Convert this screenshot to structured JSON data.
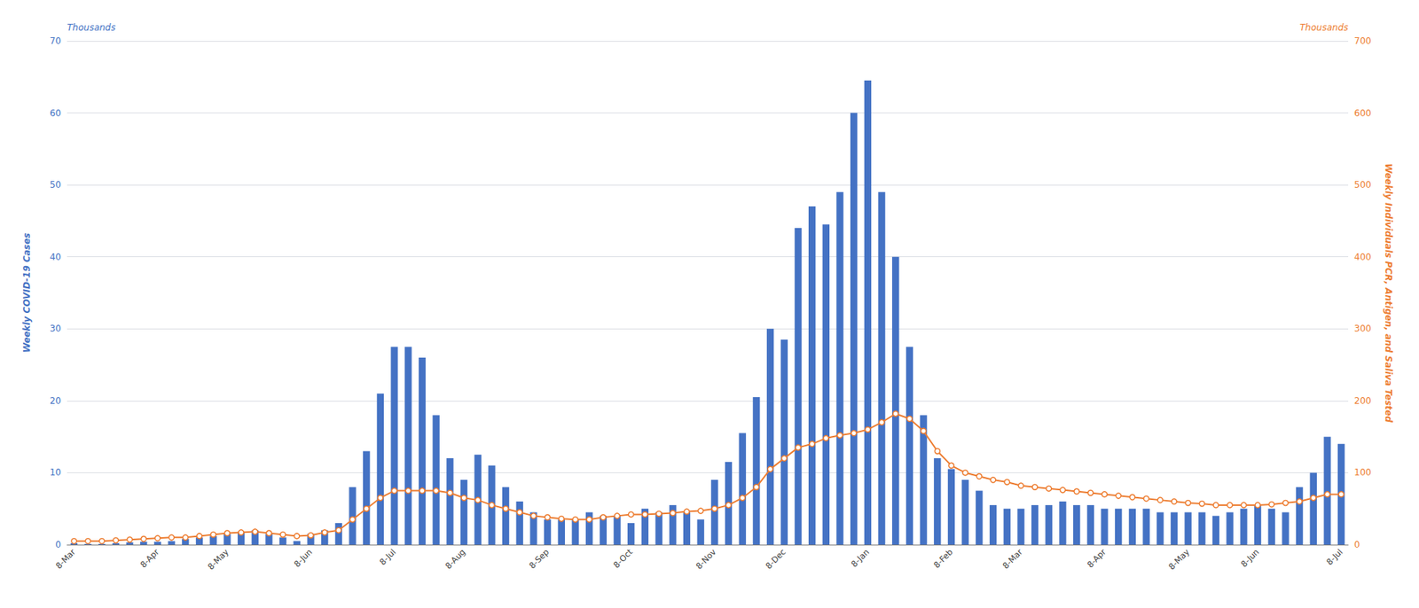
{
  "chart_data": {
    "type": "bar",
    "ylabel": "Weekly COVID-19 Cases",
    "y2label": "Weekly Individuals PCR, Antigen, and Saliva Tested",
    "annotations": [
      {
        "text": "Thousands",
        "axis": "y"
      },
      {
        "text": "Thousands",
        "axis": "y2"
      }
    ],
    "ylim": [
      0,
      70
    ],
    "yticks": [
      0,
      10,
      20,
      30,
      40,
      50,
      60,
      70
    ],
    "y2lim": [
      0,
      700
    ],
    "y2ticks": [
      0,
      100,
      200,
      300,
      400,
      500,
      600,
      700
    ],
    "grid": true,
    "categories": [
      "8-Mar",
      null,
      null,
      null,
      null,
      null,
      "8-Apr",
      null,
      null,
      null,
      null,
      "8-May",
      null,
      null,
      null,
      null,
      null,
      "8-Jun",
      null,
      null,
      null,
      null,
      null,
      "8-Jul",
      null,
      null,
      null,
      null,
      "8-Aug",
      null,
      null,
      null,
      null,
      null,
      "8-Sep",
      null,
      null,
      null,
      null,
      null,
      "8-Oct",
      null,
      null,
      null,
      null,
      null,
      "8-Nov",
      null,
      null,
      null,
      null,
      "8-Dec",
      null,
      null,
      null,
      null,
      null,
      "8-Jan",
      null,
      null,
      null,
      null,
      null,
      "8-Feb",
      null,
      null,
      null,
      null,
      "8-Mar",
      null,
      null,
      null,
      null,
      null,
      "8-Apr",
      null,
      null,
      null,
      null,
      null,
      "8-May",
      null,
      null,
      null,
      null,
      "8-Jun",
      null,
      null,
      null,
      null,
      null,
      "8-Jul"
    ],
    "series": [
      {
        "type": "bar",
        "color": "#4472C4",
        "values": [
          0.2,
          0.1,
          0.1,
          0.2,
          0.3,
          0.4,
          0.4,
          0.5,
          0.8,
          1.0,
          1.2,
          1.5,
          1.8,
          2.0,
          1.5,
          1.0,
          0.5,
          1.5,
          2.0,
          3.0,
          8.0,
          13.0,
          21.0,
          27.5,
          27.5,
          26.0,
          18.0,
          12.0,
          9.0,
          12.5,
          11.0,
          8.0,
          6.0,
          4.5,
          3.5,
          3.5,
          3.5,
          4.5,
          4.0,
          4.0,
          3.0,
          5.0,
          4.5,
          5.5,
          4.5,
          3.5,
          9.0,
          11.5,
          15.5,
          20.5,
          30.0,
          28.5,
          44.0,
          47.0,
          44.5,
          49.0,
          60.0,
          64.5,
          49.0,
          40.0,
          27.5,
          18.0,
          12.0,
          10.5,
          9.0,
          7.5,
          5.5,
          5.0,
          5.0,
          5.5,
          5.5,
          6.0,
          5.5,
          5.5,
          5.0,
          5.0,
          5.0,
          5.0,
          4.5,
          4.5,
          4.5,
          4.5,
          4.0,
          4.5,
          5.0,
          5.5,
          5.0,
          4.5,
          8.0,
          10.0,
          15.0,
          14.0
        ]
      },
      {
        "type": "line",
        "axis": "y2",
        "color": "#ED7D31",
        "marker": "circle",
        "values": [
          5,
          5,
          5,
          6,
          7,
          8,
          9,
          10,
          10,
          12,
          14,
          16,
          17,
          18,
          16,
          14,
          12,
          13,
          17,
          20,
          35,
          50,
          65,
          75,
          75,
          75,
          75,
          72,
          65,
          62,
          55,
          50,
          45,
          40,
          38,
          36,
          35,
          35,
          38,
          40,
          42,
          42,
          43,
          44,
          46,
          47,
          50,
          55,
          65,
          80,
          105,
          120,
          135,
          140,
          148,
          152,
          155,
          160,
          170,
          182,
          175,
          158,
          130,
          110,
          100,
          95,
          90,
          87,
          82,
          80,
          78,
          76,
          74,
          72,
          70,
          68,
          66,
          64,
          62,
          60,
          58,
          57,
          55,
          55,
          55,
          55,
          56,
          58,
          60,
          65,
          70,
          70
        ]
      }
    ]
  }
}
